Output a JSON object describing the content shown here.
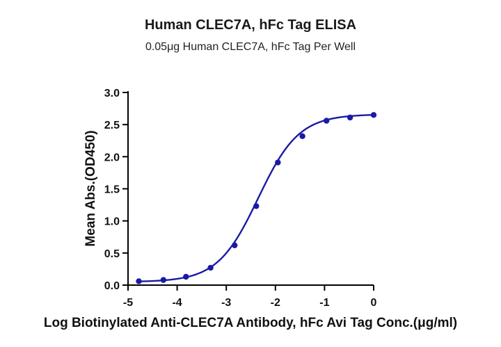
{
  "chart_data": {
    "type": "scatter",
    "title": "Human CLEC7A, hFc Tag ELISA",
    "subtitle": "0.05μg Human CLEC7A, hFc Tag Per Well",
    "xlabel": "Log Biotinylated Anti-CLEC7A Antibody, hFc Avi Tag Conc.(μg/ml)",
    "ylabel": "Mean Abs.(OD450)",
    "xlim": [
      -5,
      0
    ],
    "ylim": [
      0,
      3.0
    ],
    "xticks": [
      "-5",
      "-4",
      "-3",
      "-2",
      "-1",
      "0"
    ],
    "yticks": [
      "0.0",
      "0.5",
      "1.0",
      "1.5",
      "2.0",
      "2.5",
      "3.0"
    ],
    "grid": false,
    "color": "#1a1aa6",
    "fit": {
      "model": "4PL",
      "bottom": 0.05,
      "top": 2.66,
      "log_ec50": -2.35,
      "hill_slope": 1.05
    },
    "series": [
      {
        "x": [
          -4.78,
          -4.28,
          -3.82,
          -3.32,
          -2.83,
          -2.39,
          -1.95,
          -1.45,
          -0.96,
          -0.48,
          0.0
        ],
        "y": [
          0.06,
          0.08,
          0.13,
          0.27,
          0.62,
          1.23,
          1.91,
          2.32,
          2.56,
          2.61,
          2.65
        ]
      }
    ]
  }
}
